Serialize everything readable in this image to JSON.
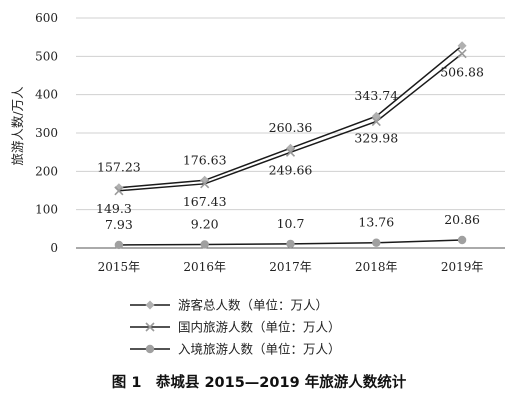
{
  "chart_data": {
    "type": "line",
    "categories": [
      "2015年",
      "2016年",
      "2017年",
      "2018年",
      "2019年"
    ],
    "series": [
      {
        "name": "游客总人数（单位：万人）",
        "values": [
          157.23,
          176.63,
          260.36,
          343.74,
          527.74
        ],
        "color": "#b0b0b0",
        "marker": "diamond",
        "labels": [
          "157.23",
          "176.63",
          "260.36",
          "343.74",
          ""
        ]
      },
      {
        "name": "国内旅游人数（单位：万人）",
        "values": [
          149.3,
          167.43,
          249.66,
          329.98,
          506.88
        ],
        "color": "#9a9a9a",
        "marker": "cross",
        "labels": [
          "149.3",
          "167.43",
          "249.66",
          "329.98",
          "506.88"
        ]
      },
      {
        "name": "入境旅游人数（单位：万人）",
        "values": [
          7.93,
          9.2,
          10.7,
          13.76,
          20.86
        ],
        "color": "#a0a0a0",
        "marker": "circle",
        "labels": [
          "7.93",
          "9.20",
          "10.7",
          "13.76",
          "20.86"
        ]
      }
    ],
    "ylabel": "旅游人数/万人",
    "yticks": [
      0,
      100,
      200,
      300,
      400,
      500,
      600
    ],
    "ylim": [
      0,
      600
    ],
    "grid": true,
    "legend": "bottom",
    "caption": "图 1　恭城县 2015—2019 年旅游人数统计"
  }
}
